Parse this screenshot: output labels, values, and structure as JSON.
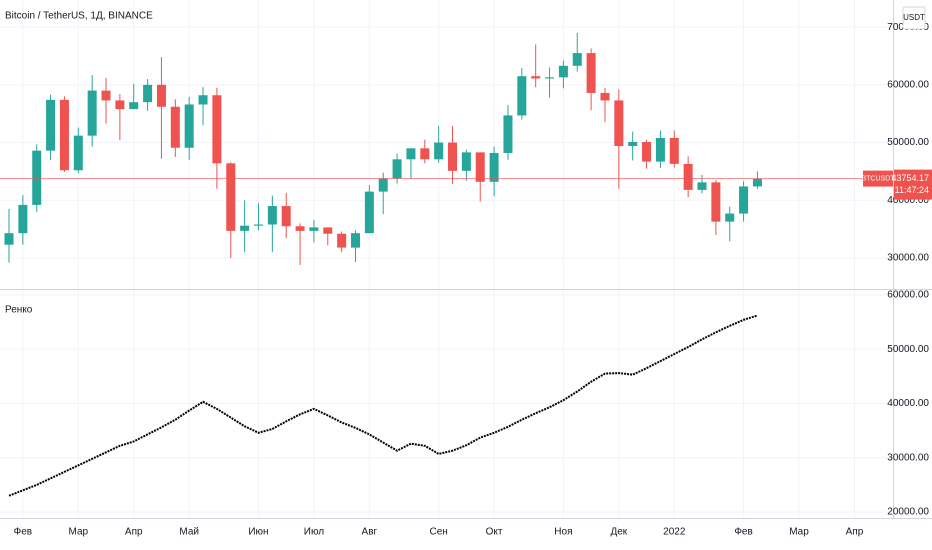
{
  "chart_data": [
    {
      "type": "candlestick",
      "title": "Bitcoin / TetherUS, 1Д, BINANCE",
      "currency": "USDT",
      "symbol": "BTCUSDT",
      "last_price": 43754.17,
      "countdown": "11:47:24",
      "up_color": "#26a69a",
      "down_color": "#ef5350",
      "grid": true,
      "open": [
        32300,
        34300,
        39200,
        48600,
        57400,
        45200,
        51200,
        59000,
        57300,
        55800,
        57000,
        60000,
        56200,
        49100,
        56600,
        58200,
        46400,
        34700,
        35600,
        35800,
        39000,
        35500,
        34700,
        35300,
        34200,
        31800,
        34300,
        41500,
        43800,
        47100,
        49000,
        47100,
        50000,
        45100,
        48300,
        43200,
        48200,
        54700,
        61500,
        61100,
        61300,
        63300,
        65500,
        58600,
        57300,
        49400,
        50100,
        46700,
        50800,
        46300,
        41800,
        43100,
        36300,
        37700,
        42400
      ],
      "high": [
        38500,
        40900,
        49700,
        58300,
        58000,
        52600,
        61700,
        61200,
        58400,
        60200,
        61000,
        64800,
        57500,
        57900,
        59600,
        59500,
        46600,
        40000,
        39500,
        40800,
        41300,
        36000,
        36600,
        35300,
        34600,
        34800,
        42600,
        44800,
        48100,
        49000,
        50500,
        52900,
        52900,
        48800,
        48300,
        49300,
        56500,
        62900,
        67000,
        63000,
        64200,
        69000,
        66300,
        59500,
        59200,
        51900,
        50500,
        52100,
        52100,
        47600,
        44400,
        43500,
        38900,
        43300,
        45000
      ],
      "low": [
        29200,
        32300,
        38000,
        47000,
        44900,
        44700,
        49300,
        53300,
        50400,
        55800,
        55500,
        47200,
        47500,
        47000,
        53000,
        42000,
        30000,
        31000,
        34800,
        31000,
        33400,
        28800,
        32700,
        32200,
        31000,
        29300,
        34300,
        37600,
        42900,
        43700,
        46400,
        46500,
        42800,
        43400,
        39800,
        40700,
        47000,
        54000,
        59600,
        57800,
        59400,
        62300,
        55600,
        53500,
        42000,
        46900,
        45500,
        45600,
        45700,
        40500,
        41200,
        34000,
        32900,
        36300,
        42000
      ],
      "close": [
        34300,
        39200,
        48600,
        57400,
        45200,
        51200,
        59000,
        57300,
        55800,
        57000,
        60000,
        56200,
        49100,
        56600,
        58200,
        46400,
        34700,
        35600,
        35800,
        39000,
        35500,
        34700,
        35300,
        34200,
        31800,
        34300,
        41500,
        43800,
        47100,
        49000,
        47100,
        50000,
        45100,
        48300,
        43200,
        48200,
        54700,
        61500,
        61100,
        61300,
        63300,
        65500,
        58600,
        57300,
        49400,
        50100,
        46700,
        50800,
        46300,
        41800,
        43100,
        36300,
        37700,
        42400,
        43754.17
      ],
      "ylim": [
        24800,
        74700
      ],
      "yticks": [
        {
          "value": 30000,
          "label": "30000.00"
        },
        {
          "value": 40000,
          "label": "40000.00"
        },
        {
          "value": 50000,
          "label": "50000.00"
        },
        {
          "value": 60000,
          "label": "60000.00"
        },
        {
          "value": 70000,
          "label": "70000.00"
        }
      ]
    },
    {
      "type": "line",
      "grid": true,
      "categories": [
        null,
        "Фев",
        null,
        null,
        null,
        "Мар",
        null,
        null,
        null,
        "Апр",
        null,
        null,
        null,
        "Май",
        null,
        null,
        null,
        null,
        "Июн",
        null,
        null,
        null,
        "Июл",
        null,
        null,
        null,
        "Авг",
        null,
        null,
        null,
        null,
        "Сен",
        null,
        null,
        null,
        "Окт",
        null,
        null,
        null,
        null,
        "Ноя",
        null,
        null,
        null,
        "Дек",
        null,
        null,
        null,
        "2022",
        null,
        null,
        null,
        null,
        "Фев",
        null,
        null,
        null,
        "Мар",
        null,
        null,
        null,
        "Апр"
      ],
      "series": [
        {
          "name": "Ренко",
          "color": "#000000",
          "values": [
            23000,
            24000,
            25000,
            26200,
            27400,
            28600,
            29800,
            31000,
            32200,
            33000,
            34300,
            35600,
            37000,
            38700,
            40300,
            39000,
            37400,
            35800,
            34600,
            35300,
            36700,
            38000,
            39000,
            37800,
            36500,
            35500,
            34300,
            32800,
            31300,
            32600,
            32200,
            30700,
            31300,
            32300,
            33700,
            34600,
            35700,
            37000,
            38200,
            39300,
            40600,
            42200,
            44000,
            45500,
            45600,
            45300,
            46500,
            47800,
            49100,
            50400,
            51800,
            53100,
            54300,
            55400,
            56200,
            null,
            null,
            null,
            null,
            null,
            null,
            null
          ]
        }
      ],
      "ylim": [
        18900,
        60900
      ],
      "yticks": [
        {
          "value": 20000,
          "label": "20000.00"
        },
        {
          "value": 30000,
          "label": "30000.00"
        },
        {
          "value": 40000,
          "label": "40000.00"
        },
        {
          "value": 50000,
          "label": "50000.00"
        },
        {
          "value": 60000,
          "label": "60000.00"
        }
      ]
    }
  ]
}
